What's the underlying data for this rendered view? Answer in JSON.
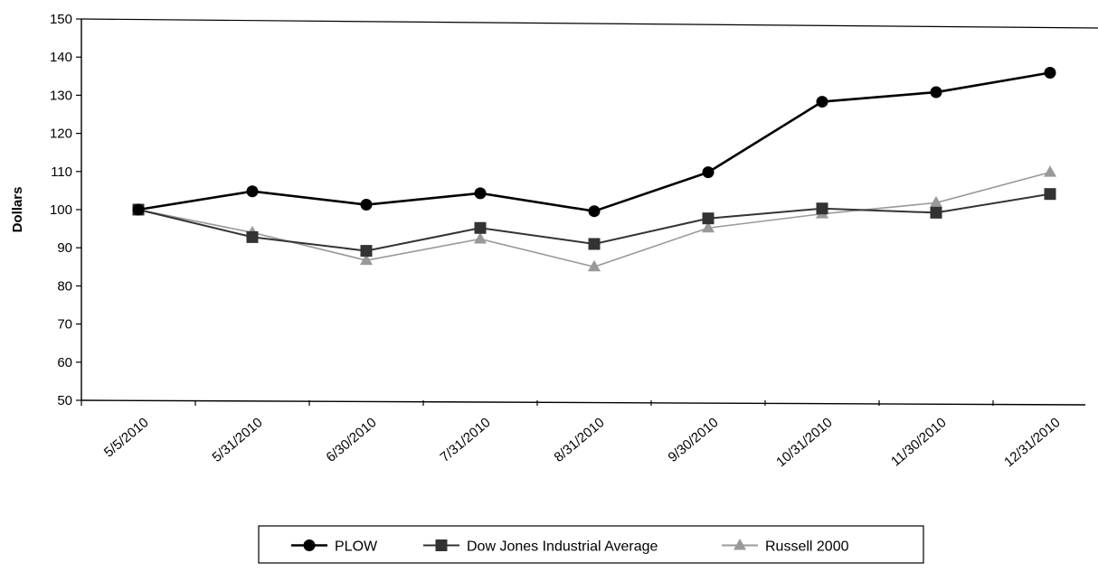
{
  "chart_data": {
    "type": "line",
    "title": "",
    "xlabel": "",
    "ylabel": "Dollars",
    "ylim": [
      50,
      150
    ],
    "yticks": [
      50,
      60,
      70,
      80,
      90,
      100,
      110,
      120,
      130,
      140,
      150
    ],
    "grid": false,
    "legend_position": "bottom",
    "categories": [
      "5/5/2010",
      "5/31/2010",
      "6/30/2010",
      "7/31/2010",
      "8/31/2010",
      "9/30/2010",
      "10/31/2010",
      "11/30/2010",
      "12/31/2010"
    ],
    "series": [
      {
        "name": "PLOW",
        "marker": "circle",
        "color": "#000000",
        "values": [
          100,
          104.8,
          101.3,
          104.3,
          99.6,
          109.8,
          128.3,
          130.8,
          135.9
        ]
      },
      {
        "name": "Dow Jones Industrial Average",
        "marker": "square",
        "color": "#333333",
        "values": [
          100,
          92.8,
          89.2,
          95.2,
          91.0,
          97.7,
          100.3,
          99.2,
          104.1
        ]
      },
      {
        "name": "Russell 2000",
        "marker": "triangle",
        "color": "#999999",
        "values": [
          100,
          94.0,
          86.7,
          92.3,
          85.0,
          95.2,
          98.9,
          101.8,
          109.8
        ]
      }
    ]
  }
}
